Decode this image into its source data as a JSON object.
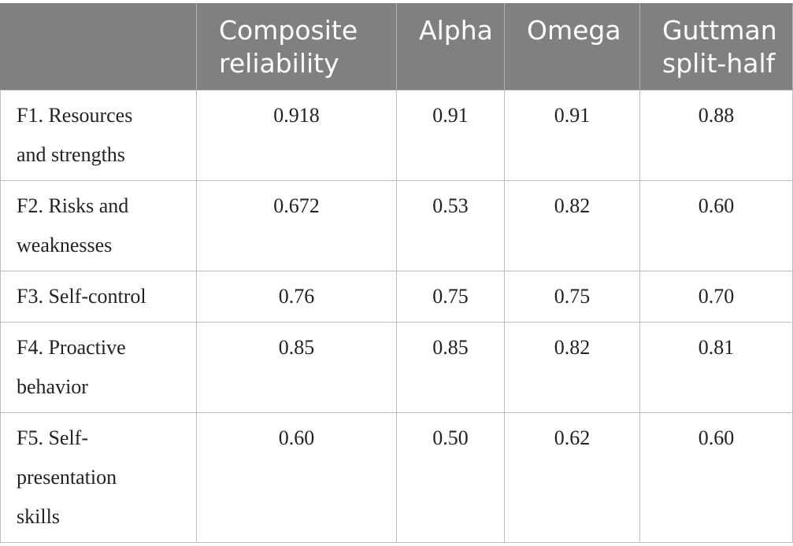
{
  "table": {
    "headers": [
      "",
      "Composite reliability",
      "Alpha",
      "Omega",
      "Guttman split-half"
    ],
    "header_lines": [
      [
        "",
        ""
      ],
      [
        "Composite",
        "reliability"
      ],
      [
        "Alpha",
        ""
      ],
      [
        "Omega",
        ""
      ],
      [
        "Guttman",
        "split-half"
      ]
    ],
    "rows": [
      {
        "factor": "F1. Resources and strengths",
        "factor_lines": [
          "F1. Resources",
          "and strengths"
        ],
        "values": [
          "0.918",
          "0.91",
          "0.91",
          "0.88"
        ]
      },
      {
        "factor": "F2. Risks and weaknesses",
        "factor_lines": [
          "F2. Risks and",
          "weaknesses"
        ],
        "values": [
          "0.672",
          "0.53",
          "0.82",
          "0.60"
        ]
      },
      {
        "factor": "F3. Self-control",
        "factor_lines": [
          "F3. Self-control"
        ],
        "values": [
          "0.76",
          "0.75",
          "0.75",
          "0.70"
        ]
      },
      {
        "factor": "F4. Proactive behavior",
        "factor_lines": [
          "F4. Proactive",
          "behavior"
        ],
        "values": [
          "0.85",
          "0.85",
          "0.82",
          "0.81"
        ]
      },
      {
        "factor": "F5. Self-presentation skills",
        "factor_lines": [
          "F5. Self-",
          "presentation",
          "skills"
        ],
        "values": [
          "0.60",
          "0.50",
          "0.62",
          "0.60"
        ]
      }
    ]
  },
  "colors": {
    "header_bg": "#808080",
    "header_text": "#ffffff",
    "border": "#bdbdbd",
    "body_text": "#222222"
  }
}
